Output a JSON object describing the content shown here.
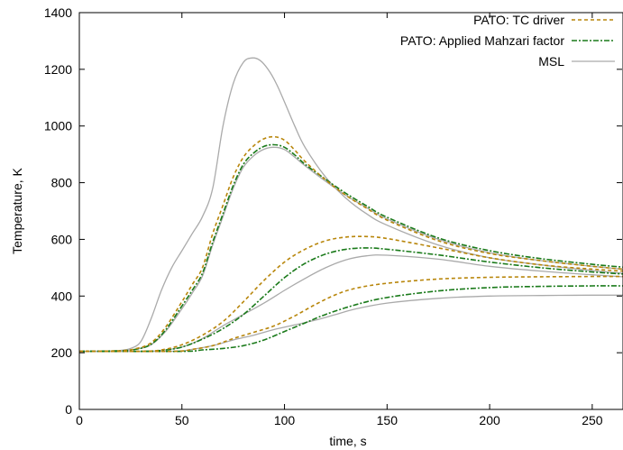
{
  "chart_data": {
    "type": "line",
    "xlabel": "time,  s",
    "ylabel": "Temperature,  K",
    "xlim": [
      0,
      265
    ],
    "ylim": [
      0,
      1400
    ],
    "x_ticks": [
      "0",
      "50",
      "100",
      "150",
      "200",
      "250"
    ],
    "y_ticks": [
      "0",
      "200",
      "400",
      "600",
      "800",
      "1000",
      "1200",
      "1400"
    ],
    "grid": false,
    "legend_position": "top-right",
    "series": [
      {
        "name": "PATO:  TC driver",
        "color": "#b8860b",
        "dash": "dashed",
        "curves": [
          [
            [
              0,
              205
            ],
            [
              20,
              207
            ],
            [
              28,
              215
            ],
            [
              35,
              235
            ],
            [
              42,
              290
            ],
            [
              50,
              380
            ],
            [
              55,
              440
            ],
            [
              60,
              500
            ],
            [
              65,
              620
            ],
            [
              70,
              720
            ],
            [
              75,
              820
            ],
            [
              80,
              890
            ],
            [
              85,
              930
            ],
            [
              90,
              955
            ],
            [
              95,
              962
            ],
            [
              100,
              950
            ],
            [
              105,
              915
            ],
            [
              110,
              875
            ],
            [
              120,
              810
            ],
            [
              130,
              755
            ],
            [
              140,
              710
            ],
            [
              150,
              668
            ],
            [
              175,
              595
            ],
            [
              200,
              550
            ],
            [
              225,
              525
            ],
            [
              250,
              505
            ],
            [
              265,
              495
            ]
          ],
          [
            [
              0,
              205
            ],
            [
              30,
              205
            ],
            [
              40,
              210
            ],
            [
              50,
              228
            ],
            [
              60,
              262
            ],
            [
              70,
              310
            ],
            [
              80,
              380
            ],
            [
              90,
              455
            ],
            [
              100,
              520
            ],
            [
              110,
              565
            ],
            [
              120,
              595
            ],
            [
              130,
              608
            ],
            [
              140,
              610
            ],
            [
              150,
              603
            ],
            [
              175,
              570
            ],
            [
              200,
              535
            ],
            [
              225,
              510
            ],
            [
              250,
              495
            ],
            [
              265,
              488
            ]
          ],
          [
            [
              0,
              205
            ],
            [
              45,
              205
            ],
            [
              55,
              212
            ],
            [
              65,
              225
            ],
            [
              75,
              250
            ],
            [
              85,
              272
            ],
            [
              95,
              295
            ],
            [
              105,
              330
            ],
            [
              115,
              370
            ],
            [
              125,
              405
            ],
            [
              135,
              428
            ],
            [
              150,
              445
            ],
            [
              175,
              460
            ],
            [
              200,
              466
            ],
            [
              225,
              468
            ],
            [
              250,
              469
            ],
            [
              265,
              469
            ]
          ]
        ]
      },
      {
        "name": "PATO:  Applied Mahzari factor",
        "color": "#1a7a1a",
        "dash": "dashdot",
        "curves": [
          [
            [
              0,
              205
            ],
            [
              20,
              207
            ],
            [
              28,
              213
            ],
            [
              35,
              230
            ],
            [
              42,
              280
            ],
            [
              50,
              365
            ],
            [
              55,
              420
            ],
            [
              60,
              480
            ],
            [
              65,
              590
            ],
            [
              70,
              690
            ],
            [
              75,
              790
            ],
            [
              80,
              865
            ],
            [
              85,
              905
            ],
            [
              90,
              928
            ],
            [
              95,
              934
            ],
            [
              100,
              925
            ],
            [
              105,
              898
            ],
            [
              110,
              865
            ],
            [
              120,
              812
            ],
            [
              130,
              762
            ],
            [
              140,
              718
            ],
            [
              150,
              678
            ],
            [
              175,
              605
            ],
            [
              200,
              560
            ],
            [
              225,
              532
            ],
            [
              250,
              512
            ],
            [
              265,
              502
            ]
          ],
          [
            [
              0,
              205
            ],
            [
              30,
              205
            ],
            [
              40,
              208
            ],
            [
              50,
              220
            ],
            [
              60,
              248
            ],
            [
              70,
              285
            ],
            [
              80,
              335
            ],
            [
              90,
              400
            ],
            [
              100,
              465
            ],
            [
              110,
              515
            ],
            [
              120,
              548
            ],
            [
              130,
              565
            ],
            [
              140,
              570
            ],
            [
              150,
              565
            ],
            [
              175,
              545
            ],
            [
              200,
              520
            ],
            [
              225,
              500
            ],
            [
              250,
              485
            ],
            [
              265,
              478
            ]
          ],
          [
            [
              0,
              205
            ],
            [
              50,
              205
            ],
            [
              60,
              210
            ],
            [
              70,
              215
            ],
            [
              80,
              225
            ],
            [
              90,
              245
            ],
            [
              100,
              275
            ],
            [
              110,
              305
            ],
            [
              120,
              335
            ],
            [
              135,
              370
            ],
            [
              150,
              395
            ],
            [
              175,
              418
            ],
            [
              200,
              430
            ],
            [
              225,
              434
            ],
            [
              250,
              436
            ],
            [
              265,
              436
            ]
          ]
        ]
      },
      {
        "name": "MSL",
        "color": "#aaaaaa",
        "dash": "solid",
        "curves": [
          [
            [
              0,
              205
            ],
            [
              15,
              205
            ],
            [
              20,
              208
            ],
            [
              25,
              215
            ],
            [
              30,
              240
            ],
            [
              35,
              320
            ],
            [
              40,
              420
            ],
            [
              45,
              500
            ],
            [
              50,
              560
            ],
            [
              55,
              620
            ],
            [
              60,
              680
            ],
            [
              65,
              780
            ],
            [
              70,
              1000
            ],
            [
              75,
              1150
            ],
            [
              80,
              1225
            ],
            [
              84,
              1240
            ],
            [
              88,
              1232
            ],
            [
              92,
              1200
            ],
            [
              96,
              1150
            ],
            [
              100,
              1085
            ],
            [
              105,
              1000
            ],
            [
              110,
              925
            ],
            [
              120,
              820
            ],
            [
              130,
              745
            ],
            [
              140,
              690
            ],
            [
              150,
              650
            ],
            [
              175,
              580
            ],
            [
              200,
              535
            ],
            [
              225,
              510
            ],
            [
              250,
              490
            ],
            [
              265,
              480
            ]
          ],
          [
            [
              0,
              205
            ],
            [
              20,
              207
            ],
            [
              28,
              213
            ],
            [
              35,
              228
            ],
            [
              42,
              275
            ],
            [
              50,
              355
            ],
            [
              55,
              410
            ],
            [
              60,
              470
            ],
            [
              65,
              580
            ],
            [
              70,
              680
            ],
            [
              75,
              780
            ],
            [
              80,
              855
            ],
            [
              85,
              895
            ],
            [
              90,
              918
            ],
            [
              95,
              925
            ],
            [
              100,
              917
            ],
            [
              105,
              890
            ],
            [
              110,
              860
            ],
            [
              120,
              805
            ],
            [
              130,
              755
            ],
            [
              140,
              712
            ],
            [
              150,
              672
            ],
            [
              175,
              600
            ],
            [
              200,
              553
            ],
            [
              225,
              525
            ],
            [
              250,
              505
            ],
            [
              265,
              495
            ]
          ],
          [
            [
              0,
              205
            ],
            [
              30,
              205
            ],
            [
              40,
              208
            ],
            [
              50,
              220
            ],
            [
              60,
              250
            ],
            [
              70,
              295
            ],
            [
              80,
              335
            ],
            [
              90,
              375
            ],
            [
              100,
              420
            ],
            [
              110,
              462
            ],
            [
              120,
              500
            ],
            [
              130,
              528
            ],
            [
              140,
              542
            ],
            [
              150,
              544
            ],
            [
              175,
              530
            ],
            [
              200,
              505
            ],
            [
              225,
              488
            ],
            [
              250,
              475
            ],
            [
              265,
              468
            ]
          ],
          [
            [
              0,
              205
            ],
            [
              45,
              205
            ],
            [
              55,
              212
            ],
            [
              65,
              225
            ],
            [
              75,
              245
            ],
            [
              85,
              262
            ],
            [
              95,
              282
            ],
            [
              105,
              298
            ],
            [
              115,
              315
            ],
            [
              125,
              335
            ],
            [
              135,
              355
            ],
            [
              150,
              375
            ],
            [
              175,
              392
            ],
            [
              200,
              400
            ],
            [
              225,
              402
            ],
            [
              250,
              403
            ],
            [
              265,
              403
            ]
          ]
        ]
      }
    ]
  }
}
